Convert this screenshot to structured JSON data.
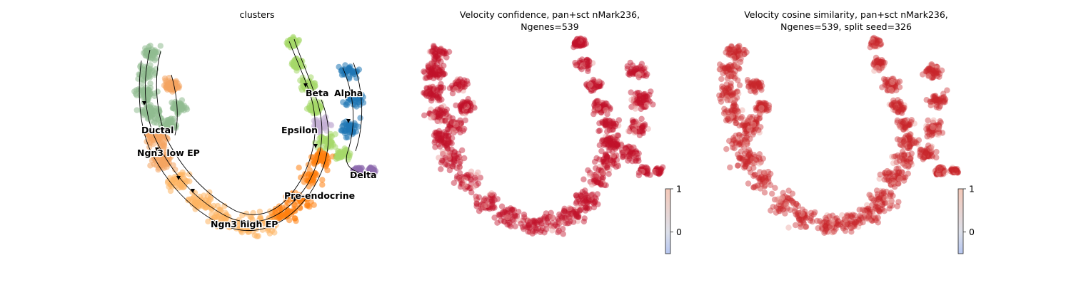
{
  "chart_data": [
    {
      "type": "scatter",
      "title": "clusters",
      "xlabel": "",
      "ylabel": "",
      "grid": false,
      "legend": "on-data",
      "clusters": [
        {
          "name": "Ductal",
          "color": "#8fbc8f"
        },
        {
          "name": "Ngn3 low EP",
          "color": "#f4a460"
        },
        {
          "name": "Ngn3 high EP",
          "color": "#fdb462"
        },
        {
          "name": "Pre-endocrine",
          "color": "#ff7f0e"
        },
        {
          "name": "Beta",
          "color": "#a6d96a"
        },
        {
          "name": "Alpha",
          "color": "#1f77b4"
        },
        {
          "name": "Delta",
          "color": "#8e6cae"
        },
        {
          "name": "Epsilon",
          "color": "#c5b0d5"
        }
      ],
      "overlay": "velocity streamlines"
    },
    {
      "type": "scatter",
      "title": "Velocity confidence, pan+sct nMark236,\nNgenes=539",
      "xlabel": "",
      "ylabel": "",
      "grid": false,
      "colorbar": {
        "ticks": [
          "1",
          "0"
        ],
        "range": [
          -0.5,
          1
        ],
        "colormap": "coolwarm"
      },
      "point_color": "#c0112b"
    },
    {
      "type": "scatter",
      "title": "Velocity cosine similarity, pan+sct nMark236,\nNgenes=539, split seed=326",
      "xlabel": "",
      "ylabel": "",
      "grid": false,
      "colorbar": {
        "ticks": [
          "1",
          "0"
        ],
        "range": [
          -0.5,
          1
        ],
        "colormap": "coolwarm"
      },
      "point_color": "#c8262c"
    }
  ]
}
